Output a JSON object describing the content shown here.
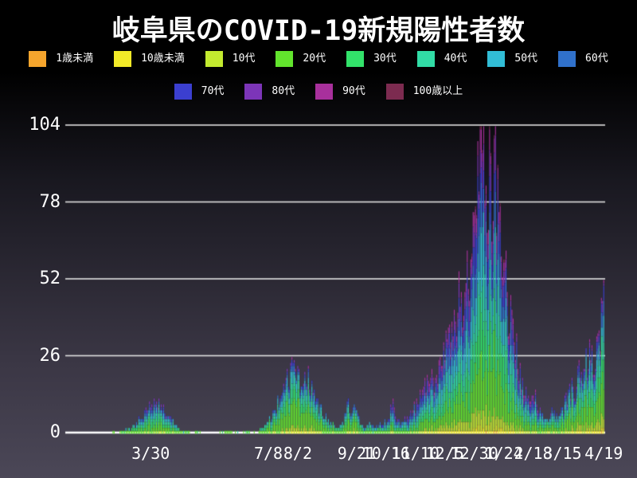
{
  "chart_data": {
    "type": "bar",
    "stacked": true,
    "title": "岐阜県のCOVID-19新規陽性者数",
    "start_date_day0": "2020-01-20",
    "end_date": "2021-04-19",
    "days": 456,
    "ylim": [
      0,
      104
    ],
    "yticks": [
      0,
      26,
      52,
      78,
      104
    ],
    "xticks": [
      {
        "label": "3/30",
        "day": 70
      },
      {
        "label": "7/8",
        "day": 170
      },
      {
        "label": "8/2",
        "day": 195
      },
      {
        "label": "9/21",
        "day": 245
      },
      {
        "label": "10/16",
        "day": 270
      },
      {
        "label": "11/10",
        "day": 295
      },
      {
        "label": "12/5",
        "day": 320
      },
      {
        "label": "12/30",
        "day": 345
      },
      {
        "label": "1/24",
        "day": 370
      },
      {
        "label": "2/18",
        "day": 395
      },
      {
        "label": "3/15",
        "day": 420
      },
      {
        "label": "4/19",
        "day": 455
      }
    ],
    "legend": [
      {
        "label": "1歳未満",
        "color": "#f5a52d"
      },
      {
        "label": "10歳未満",
        "color": "#f2ea28"
      },
      {
        "label": "10代",
        "color": "#c3ea2f"
      },
      {
        "label": "20代",
        "color": "#62e42d"
      },
      {
        "label": "30代",
        "color": "#32e26a"
      },
      {
        "label": "40代",
        "color": "#31dca6"
      },
      {
        "label": "50代",
        "color": "#31bdd6"
      },
      {
        "label": "60代",
        "color": "#3071cb"
      },
      {
        "label": "70代",
        "color": "#3b3fd0"
      },
      {
        "label": "80代",
        "color": "#7c35b8"
      },
      {
        "label": "90代",
        "color": "#a8309c"
      },
      {
        "label": "100歳以上",
        "color": "#7c2b50"
      }
    ],
    "envelope_keyframes": [
      [
        0,
        0
      ],
      [
        36,
        0
      ],
      [
        38,
        1
      ],
      [
        41,
        0
      ],
      [
        45,
        1
      ],
      [
        49,
        2
      ],
      [
        53,
        2
      ],
      [
        57,
        3
      ],
      [
        61,
        5
      ],
      [
        65,
        7
      ],
      [
        69,
        9
      ],
      [
        73,
        12
      ],
      [
        77,
        11
      ],
      [
        81,
        9
      ],
      [
        85,
        6
      ],
      [
        89,
        4
      ],
      [
        93,
        2
      ],
      [
        97,
        1
      ],
      [
        101,
        1
      ],
      [
        105,
        0
      ],
      [
        109,
        1
      ],
      [
        113,
        0
      ],
      [
        125,
        0
      ],
      [
        137,
        1
      ],
      [
        145,
        0
      ],
      [
        153,
        1
      ],
      [
        160,
        0
      ],
      [
        164,
        2
      ],
      [
        168,
        3
      ],
      [
        172,
        5
      ],
      [
        176,
        8
      ],
      [
        180,
        12
      ],
      [
        184,
        16
      ],
      [
        188,
        20
      ],
      [
        192,
        25
      ],
      [
        195,
        21
      ],
      [
        198,
        17
      ],
      [
        202,
        21
      ],
      [
        206,
        15
      ],
      [
        210,
        11
      ],
      [
        214,
        8
      ],
      [
        218,
        6
      ],
      [
        222,
        4
      ],
      [
        226,
        3
      ],
      [
        230,
        2
      ],
      [
        234,
        4
      ],
      [
        238,
        12
      ],
      [
        241,
        7
      ],
      [
        244,
        9
      ],
      [
        248,
        4
      ],
      [
        252,
        2
      ],
      [
        256,
        3
      ],
      [
        260,
        2
      ],
      [
        264,
        3
      ],
      [
        268,
        4
      ],
      [
        272,
        5
      ],
      [
        276,
        10
      ],
      [
        279,
        5
      ],
      [
        283,
        3
      ],
      [
        287,
        5
      ],
      [
        291,
        7
      ],
      [
        295,
        9
      ],
      [
        299,
        12
      ],
      [
        303,
        15
      ],
      [
        307,
        19
      ],
      [
        311,
        17
      ],
      [
        315,
        22
      ],
      [
        319,
        27
      ],
      [
        323,
        31
      ],
      [
        327,
        37
      ],
      [
        331,
        44
      ],
      [
        335,
        49
      ],
      [
        339,
        56
      ],
      [
        343,
        64
      ],
      [
        347,
        78
      ],
      [
        350,
        92
      ],
      [
        353,
        104
      ],
      [
        356,
        86
      ],
      [
        359,
        95
      ],
      [
        361,
        74
      ],
      [
        363,
        90
      ],
      [
        366,
        68
      ],
      [
        369,
        58
      ],
      [
        372,
        50
      ],
      [
        375,
        42
      ],
      [
        378,
        34
      ],
      [
        381,
        28
      ],
      [
        384,
        20
      ],
      [
        387,
        15
      ],
      [
        390,
        12
      ],
      [
        393,
        10
      ],
      [
        396,
        13
      ],
      [
        400,
        8
      ],
      [
        404,
        6
      ],
      [
        408,
        5
      ],
      [
        412,
        8
      ],
      [
        416,
        6
      ],
      [
        420,
        9
      ],
      [
        424,
        12
      ],
      [
        428,
        18
      ],
      [
        431,
        15
      ],
      [
        434,
        21
      ],
      [
        437,
        17
      ],
      [
        440,
        24
      ],
      [
        443,
        28
      ],
      [
        446,
        24
      ],
      [
        449,
        30
      ],
      [
        452,
        36
      ],
      [
        454,
        42
      ],
      [
        455,
        52
      ]
    ],
    "fixed_days": {
      "73": 12,
      "192": 25,
      "238": 12,
      "353": 104,
      "359": 95,
      "455": 52
    },
    "age_share_profiles": [
      {
        "until_day": 110,
        "shares": [
          0.005,
          0.015,
          0.05,
          0.25,
          0.15,
          0.14,
          0.14,
          0.1,
          0.07,
          0.05,
          0.025,
          0.005
        ]
      },
      {
        "until_day": 250,
        "shares": [
          0.005,
          0.025,
          0.07,
          0.32,
          0.17,
          0.13,
          0.12,
          0.07,
          0.045,
          0.025,
          0.015,
          0.005
        ]
      },
      {
        "until_day": 400,
        "shares": [
          0.004,
          0.02,
          0.055,
          0.17,
          0.13,
          0.135,
          0.14,
          0.11,
          0.1,
          0.08,
          0.05,
          0.006
        ]
      },
      {
        "until_day": 456,
        "shares": [
          0.005,
          0.03,
          0.085,
          0.27,
          0.155,
          0.14,
          0.12,
          0.075,
          0.06,
          0.04,
          0.018,
          0.002
        ]
      }
    ],
    "grid_on": true,
    "gridline_color": "#e2e2e2",
    "axis_color": "#ffffff",
    "text_color": "#ffffff",
    "legend_position": "top"
  }
}
